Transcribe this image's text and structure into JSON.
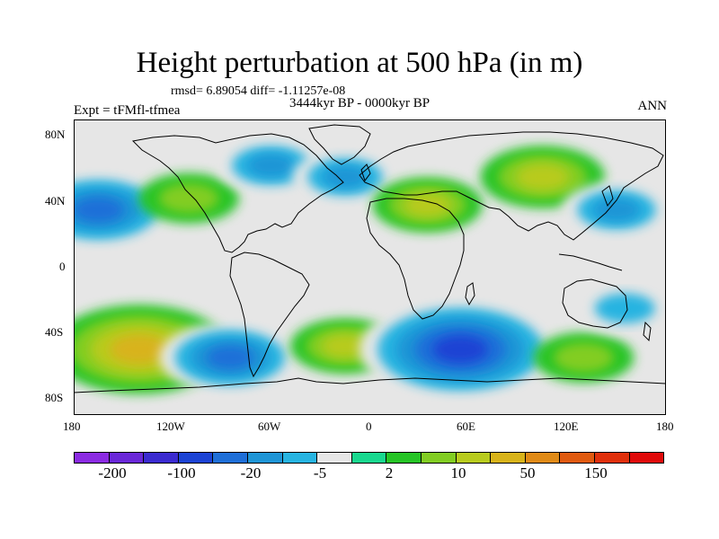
{
  "title": "Height perturbation at 500 hPa (in m)",
  "stats": "rmsd= 6.89054 diff= -1.11257e-08",
  "experiment": "Expt = tFMfl-tfmea",
  "period": "3444kyr BP - 0000kyr BP",
  "season": "ANN",
  "lat_ticks": [
    "80N",
    "40N",
    "0",
    "40S",
    "80S"
  ],
  "lon_ticks": [
    "180",
    "120W",
    "60W",
    "0",
    "60E",
    "120E",
    "180"
  ],
  "colorbar": {
    "colors": [
      "#8b2be2",
      "#6a28d8",
      "#3b2bd0",
      "#1c43d4",
      "#1f6fd8",
      "#1f95d6",
      "#27b4e1",
      "#e6e6e6",
      "#19d88f",
      "#26c426",
      "#82cd23",
      "#b8cb1e",
      "#d8b31a",
      "#e08a17",
      "#e05a10",
      "#e0300c",
      "#e00a0a"
    ],
    "labels": [
      "-200",
      "-100",
      "-20",
      "-5",
      "2",
      "10",
      "50",
      "150"
    ]
  },
  "field": {
    "background_color": "#e6e6e6",
    "anomalies": [
      {
        "lon": -165,
        "lat": 35,
        "value": -30
      },
      {
        "lon": -110,
        "lat": 42,
        "value": 8
      },
      {
        "lon": -60,
        "lat": 62,
        "value": -12
      },
      {
        "lon": -15,
        "lat": 55,
        "value": -10
      },
      {
        "lon": 35,
        "lat": 38,
        "value": 12
      },
      {
        "lon": 105,
        "lat": 55,
        "value": 18
      },
      {
        "lon": 150,
        "lat": 35,
        "value": -12
      },
      {
        "lon": -140,
        "lat": -50,
        "value": 40
      },
      {
        "lon": -85,
        "lat": -55,
        "value": -25
      },
      {
        "lon": -15,
        "lat": -48,
        "value": 12
      },
      {
        "lon": 55,
        "lat": -50,
        "value": -50
      },
      {
        "lon": 130,
        "lat": -55,
        "value": 8
      },
      {
        "lon": 155,
        "lat": -25,
        "value": -8
      }
    ]
  }
}
